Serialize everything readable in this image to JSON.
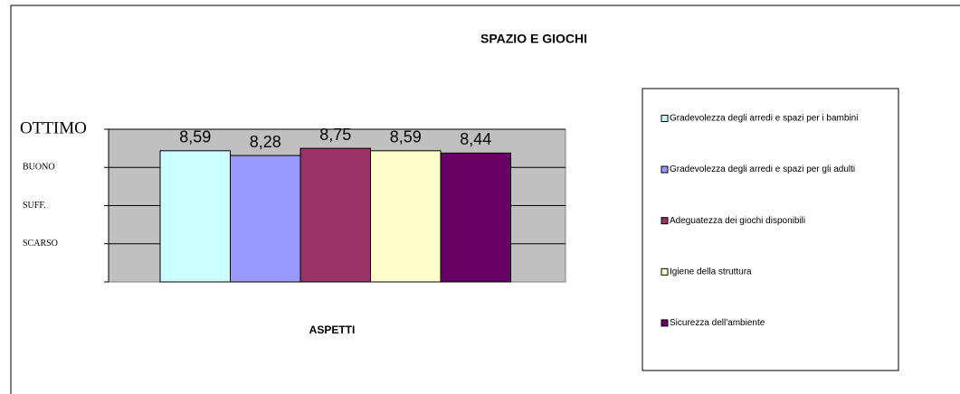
{
  "chart_data": {
    "type": "bar",
    "title": "SPAZIO E GIOCHI",
    "x_label": "ASPETTI",
    "categories": [
      null
    ],
    "series": [
      {
        "name": "Gradevolezza degli arredi e spazi per i bambini",
        "color": "#ccffff",
        "values": [
          8.59
        ],
        "value_labels": [
          "8,59"
        ]
      },
      {
        "name": "Gradevolezza degli arredi e spazi per gli adulti",
        "color": "#9999ff",
        "values": [
          8.28
        ],
        "value_labels": [
          "8,28"
        ]
      },
      {
        "name": "Adeguatezza dei giochi disponibili",
        "color": "#993366",
        "values": [
          8.75
        ],
        "value_labels": [
          "8,75"
        ]
      },
      {
        "name": "Igiene della struttura",
        "color": "#ffffcc",
        "values": [
          8.59
        ],
        "value_labels": [
          "8,59"
        ]
      },
      {
        "name": "Sicurezza dell'ambiente",
        "color": "#660066",
        "values": [
          8.44
        ],
        "value_labels": [
          "8,44"
        ]
      }
    ],
    "ylim": [
      0,
      10
    ],
    "yticks": [
      {
        "value": 2.5,
        "label": "SCARSO"
      },
      {
        "value": 5,
        "label": "SUFF."
      },
      {
        "value": 7.5,
        "label": "BUONO"
      },
      {
        "value": 10,
        "label": "OTTIMO"
      }
    ],
    "grid": true,
    "plot_background": "#c0c0c0",
    "legend": "right"
  }
}
